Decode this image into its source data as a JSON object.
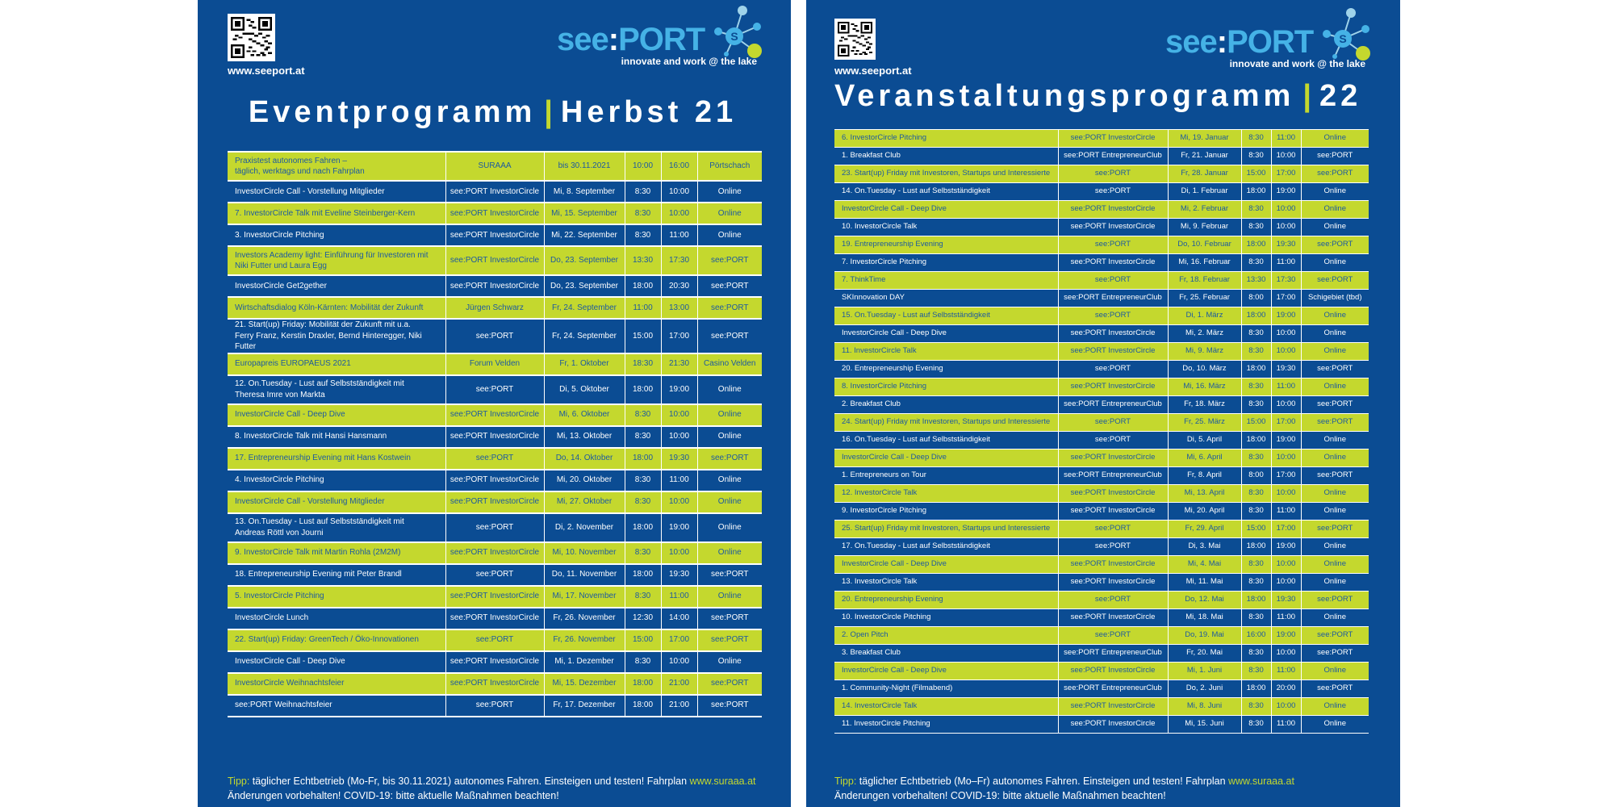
{
  "colors": {
    "blue": "#0b4c93",
    "green": "#c4d82e",
    "logo_blue": "#45b2e6"
  },
  "posters": [
    {
      "website": "www.seeport.at",
      "logo": {
        "brand_see": "see",
        "brand_colon": ":",
        "brand_port": "PORT",
        "tagline": "innovate and work @ the lake"
      },
      "title_left": "Eventprogramm",
      "title_right": "Herbst 21",
      "rows": [
        [
          "Praxistest autonomes Fahren –\ntäglich, werktags und nach Fahrplan",
          "SURAAA",
          "bis 30.11.2021",
          "10:00",
          "16:00",
          "Pörtschach"
        ],
        [
          "InvestorCircle Call - Vorstellung Mitglieder",
          "see:PORT InvestorCircle",
          "Mi, 8. September",
          "8:30",
          "10:00",
          "Online"
        ],
        [
          "7. InvestorCircle Talk mit Eveline Steinberger-Kern",
          "see:PORT InvestorCircle",
          "Mi, 15. September",
          "8:30",
          "10:00",
          "Online"
        ],
        [
          "3. InvestorCircle Pitching",
          "see:PORT InvestorCircle",
          "Mi, 22. September",
          "8:30",
          "11:00",
          "Online"
        ],
        [
          "Investors Academy light: Einführung für Investoren mit\nNiki Futter und Laura Egg",
          "see:PORT InvestorCircle",
          "Do, 23. September",
          "13:30",
          "17:30",
          "see:PORT"
        ],
        [
          "InvestorCircle Get2gether",
          "see:PORT InvestorCircle",
          "Do, 23. September",
          "18:00",
          "20:30",
          "see:PORT"
        ],
        [
          "Wirtschaftsdialog Köln-Kärnten: Mobilität der Zukunft",
          "Jürgen Schwarz",
          "Fr, 24. September",
          "11:00",
          "13:00",
          "see:PORT"
        ],
        [
          "21. Start(up) Friday: Mobilität der Zukunft mit u.a.\nFerry Franz, Kerstin Draxler, Bernd Hinteregger, Niki Futter",
          "see:PORT",
          "Fr, 24. September",
          "15:00",
          "17:00",
          "see:PORT"
        ],
        [
          "Europapreis EUROPAEUS 2021",
          "Forum Velden",
          "Fr, 1. Oktober",
          "18:30",
          "21:30",
          "Casino Velden"
        ],
        [
          "12. On.Tuesday - Lust auf Selbstständigkeit mit\nTheresa Imre von Markta",
          "see:PORT",
          "Di, 5. Oktober",
          "18:00",
          "19:00",
          "Online"
        ],
        [
          "InvestorCircle Call - Deep Dive",
          "see:PORT InvestorCircle",
          "Mi, 6. Oktober",
          "8:30",
          "10:00",
          "Online"
        ],
        [
          "8. InvestorCircle Talk mit Hansi Hansmann",
          "see:PORT InvestorCircle",
          "Mi, 13. Oktober",
          "8:30",
          "10:00",
          "Online"
        ],
        [
          "17. Entrepreneurship Evening mit Hans Kostwein",
          "see:PORT",
          "Do, 14. Oktober",
          "18:00",
          "19:30",
          "see:PORT"
        ],
        [
          "4. InvestorCircle Pitching",
          "see:PORT InvestorCircle",
          "Mi, 20. Oktober",
          "8:30",
          "11:00",
          "Online"
        ],
        [
          "InvestorCircle Call - Vorstellung Mitglieder",
          "see:PORT InvestorCircle",
          "Mi, 27. Oktober",
          "8:30",
          "10:00",
          "Online"
        ],
        [
          "13. On.Tuesday - Lust auf Selbstständigkeit mit\nAndreas Röttl von Journi",
          "see:PORT",
          "Di, 2. November",
          "18:00",
          "19:00",
          "Online"
        ],
        [
          "9. InvestorCircle Talk mit Martin Rohla (2M2M)",
          "see:PORT InvestorCircle",
          "Mi, 10. November",
          "8:30",
          "10:00",
          "Online"
        ],
        [
          "18. Entrepreneurship Evening mit Peter Brandl",
          "see:PORT",
          "Do, 11. November",
          "18:00",
          "19:30",
          "see:PORT"
        ],
        [
          "5. InvestorCircle Pitching",
          "see:PORT InvestorCircle",
          "Mi, 17. November",
          "8:30",
          "11:00",
          "Online"
        ],
        [
          "InvestorCircle Lunch",
          "see:PORT InvestorCircle",
          "Fr, 26. November",
          "12:30",
          "14:00",
          "see:PORT"
        ],
        [
          "22. Start(up) Friday: GreenTech / Öko-Innovationen",
          "see:PORT",
          "Fr, 26. November",
          "15:00",
          "17:00",
          "see:PORT"
        ],
        [
          "InvestorCircle Call - Deep Dive",
          "see:PORT InvestorCircle",
          "Mi, 1. Dezember",
          "8:30",
          "10:00",
          "Online"
        ],
        [
          "InvestorCircle Weihnachtsfeier",
          "see:PORT InvestorCircle",
          "Mi, 15. Dezember",
          "18:00",
          "21:00",
          "see:PORT"
        ],
        [
          "see:PORT Weihnachtsfeier",
          "see:PORT",
          "Fr, 17. Dezember",
          "18:00",
          "21:00",
          "see:PORT"
        ]
      ],
      "footer": {
        "tip_label": "Tipp:",
        "tip_text": " täglicher Echtbetrieb (Mo-Fr, bis 30.11.2021) autonomes Fahren. Einsteigen und testen! Fahrplan ",
        "tip_link": "www.suraaa.at",
        "notice": "Änderungen vorbehalten! COVID-19: bitte aktuelle Maßnahmen beachten!"
      }
    },
    {
      "website": "www.seeport.at",
      "logo": {
        "brand_see": "see",
        "brand_colon": ":",
        "brand_port": "PORT",
        "tagline": "innovate and work @ the lake"
      },
      "title_left": "Veranstaltungsprogramm",
      "title_right": "22",
      "rows": [
        [
          "6. InvestorCircle Pitching",
          "see:PORT InvestorCircle",
          "Mi, 19. Januar",
          "8:30",
          "11:00",
          "Online"
        ],
        [
          "1. Breakfast Club",
          "see:PORT EntrepreneurClub",
          "Fr, 21. Januar",
          "8:30",
          "10:00",
          "see:PORT"
        ],
        [
          "23. Start(up) Friday mit Investoren, Startups und Interessierte",
          "see:PORT",
          "Fr, 28. Januar",
          "15:00",
          "17:00",
          "see:PORT"
        ],
        [
          "14. On.Tuesday - Lust auf Selbstständigkeit",
          "see:PORT",
          "Di, 1. Februar",
          "18:00",
          "19:00",
          "Online"
        ],
        [
          "InvestorCircle Call - Deep Dive",
          "see:PORT InvestorCircle",
          "Mi, 2. Februar",
          "8:30",
          "10:00",
          "Online"
        ],
        [
          "10. InvestorCircle Talk",
          "see:PORT InvestorCircle",
          "Mi, 9. Februar",
          "8:30",
          "10:00",
          "Online"
        ],
        [
          "19. Entrepreneurship Evening",
          "see:PORT",
          "Do, 10. Februar",
          "18:00",
          "19:30",
          "see:PORT"
        ],
        [
          "7. InvestorCircle Pitching",
          "see:PORT InvestorCircle",
          "Mi, 16. Februar",
          "8:30",
          "11:00",
          "Online"
        ],
        [
          "7. ThinkTime",
          "see:PORT",
          "Fr, 18. Februar",
          "13:30",
          "17:30",
          "see:PORT"
        ],
        [
          "SKInnovation DAY",
          "see:PORT EntrepreneurClub",
          "Fr, 25. Februar",
          "8:00",
          "17:00",
          "Schigebiet (tbd)"
        ],
        [
          "15. On.Tuesday - Lust auf Selbstständigkeit",
          "see:PORT",
          "Di, 1. März",
          "18:00",
          "19:00",
          "Online"
        ],
        [
          "InvestorCircle Call - Deep Dive",
          "see:PORT InvestorCircle",
          "Mi, 2. März",
          "8:30",
          "10:00",
          "Online"
        ],
        [
          "11. InvestorCircle Talk",
          "see:PORT InvestorCircle",
          "Mi, 9. März",
          "8:30",
          "10:00",
          "Online"
        ],
        [
          "20. Entrepreneurship Evening",
          "see:PORT",
          "Do, 10. März",
          "18:00",
          "19:30",
          "see:PORT"
        ],
        [
          "8. InvestorCircle Pitching",
          "see:PORT InvestorCircle",
          "Mi, 16. März",
          "8:30",
          "11:00",
          "Online"
        ],
        [
          "2. Breakfast Club",
          "see:PORT EntrepreneurClub",
          "Fr, 18. März",
          "8:30",
          "10:00",
          "see:PORT"
        ],
        [
          "24. Start(up) Friday mit Investoren, Startups und Interessierte",
          "see:PORT",
          "Fr, 25. März",
          "15:00",
          "17:00",
          "see:PORT"
        ],
        [
          "16. On.Tuesday - Lust auf Selbstständigkeit",
          "see:PORT",
          "Di, 5. April",
          "18:00",
          "19:00",
          "Online"
        ],
        [
          "InvestorCircle Call - Deep Dive",
          "see:PORT InvestorCircle",
          "Mi, 6. April",
          "8:30",
          "10:00",
          "Online"
        ],
        [
          "1. Entrepreneurs on Tour",
          "see:PORT EntrepreneurClub",
          "Fr, 8. April",
          "8:00",
          "17:00",
          "see:PORT"
        ],
        [
          "12. InvestorCircle Talk",
          "see:PORT InvestorCircle",
          "Mi, 13. April",
          "8:30",
          "10:00",
          "Online"
        ],
        [
          "9. InvestorCircle Pitching",
          "see:PORT InvestorCircle",
          "Mi, 20. April",
          "8:30",
          "11:00",
          "Online"
        ],
        [
          "25. Start(up) Friday mit Investoren, Startups und Interessierte",
          "see:PORT",
          "Fr, 29. April",
          "15:00",
          "17:00",
          "see:PORT"
        ],
        [
          "17. On.Tuesday - Lust auf Selbstständigkeit",
          "see:PORT",
          "Di, 3. Mai",
          "18:00",
          "19:00",
          "Online"
        ],
        [
          "InvestorCircle Call - Deep Dive",
          "see:PORT InvestorCircle",
          "Mi, 4. Mai",
          "8:30",
          "10:00",
          "Online"
        ],
        [
          "13. InvestorCircle Talk",
          "see:PORT InvestorCircle",
          "Mi, 11. Mai",
          "8:30",
          "10:00",
          "Online"
        ],
        [
          "20. Entrepreneurship Evening",
          "see:PORT",
          "Do, 12. Mai",
          "18:00",
          "19:30",
          "see:PORT"
        ],
        [
          "10. InvestorCircle Pitching",
          "see:PORT InvestorCircle",
          "Mi, 18. Mai",
          "8:30",
          "11:00",
          "Online"
        ],
        [
          "2. Open Pitch",
          "see:PORT",
          "Do, 19. Mai",
          "16:00",
          "19:00",
          "see:PORT"
        ],
        [
          "3. Breakfast Club",
          "see:PORT EntrepreneurClub",
          "Fr, 20. Mai",
          "8:30",
          "10:00",
          "see:PORT"
        ],
        [
          "InvestorCircle Call - Deep Dive",
          "see:PORT InvestorCircle",
          "Mi, 1. Juni",
          "8:30",
          "11:00",
          "Online"
        ],
        [
          "1. Community-Night (Filmabend)",
          "see:PORT EntrepreneurClub",
          "Do, 2. Juni",
          "18:00",
          "20:00",
          "see:PORT"
        ],
        [
          "14. InvestorCircle Talk",
          "see:PORT InvestorCircle",
          "Mi, 8. Juni",
          "8:30",
          "10:00",
          "Online"
        ],
        [
          "11. InvestorCircle Pitching",
          "see:PORT InvestorCircle",
          "Mi, 15. Juni",
          "8:30",
          "11:00",
          "Online"
        ]
      ],
      "footer": {
        "tip_label": "Tipp:",
        "tip_text": " täglicher Echtbetrieb (Mo–Fr) autonomes Fahren. Einsteigen und testen! Fahrplan ",
        "tip_link": "www.suraaa.at",
        "notice": "Änderungen vorbehalten! COVID-19: bitte aktuelle Maßnahmen beachten!"
      }
    }
  ]
}
